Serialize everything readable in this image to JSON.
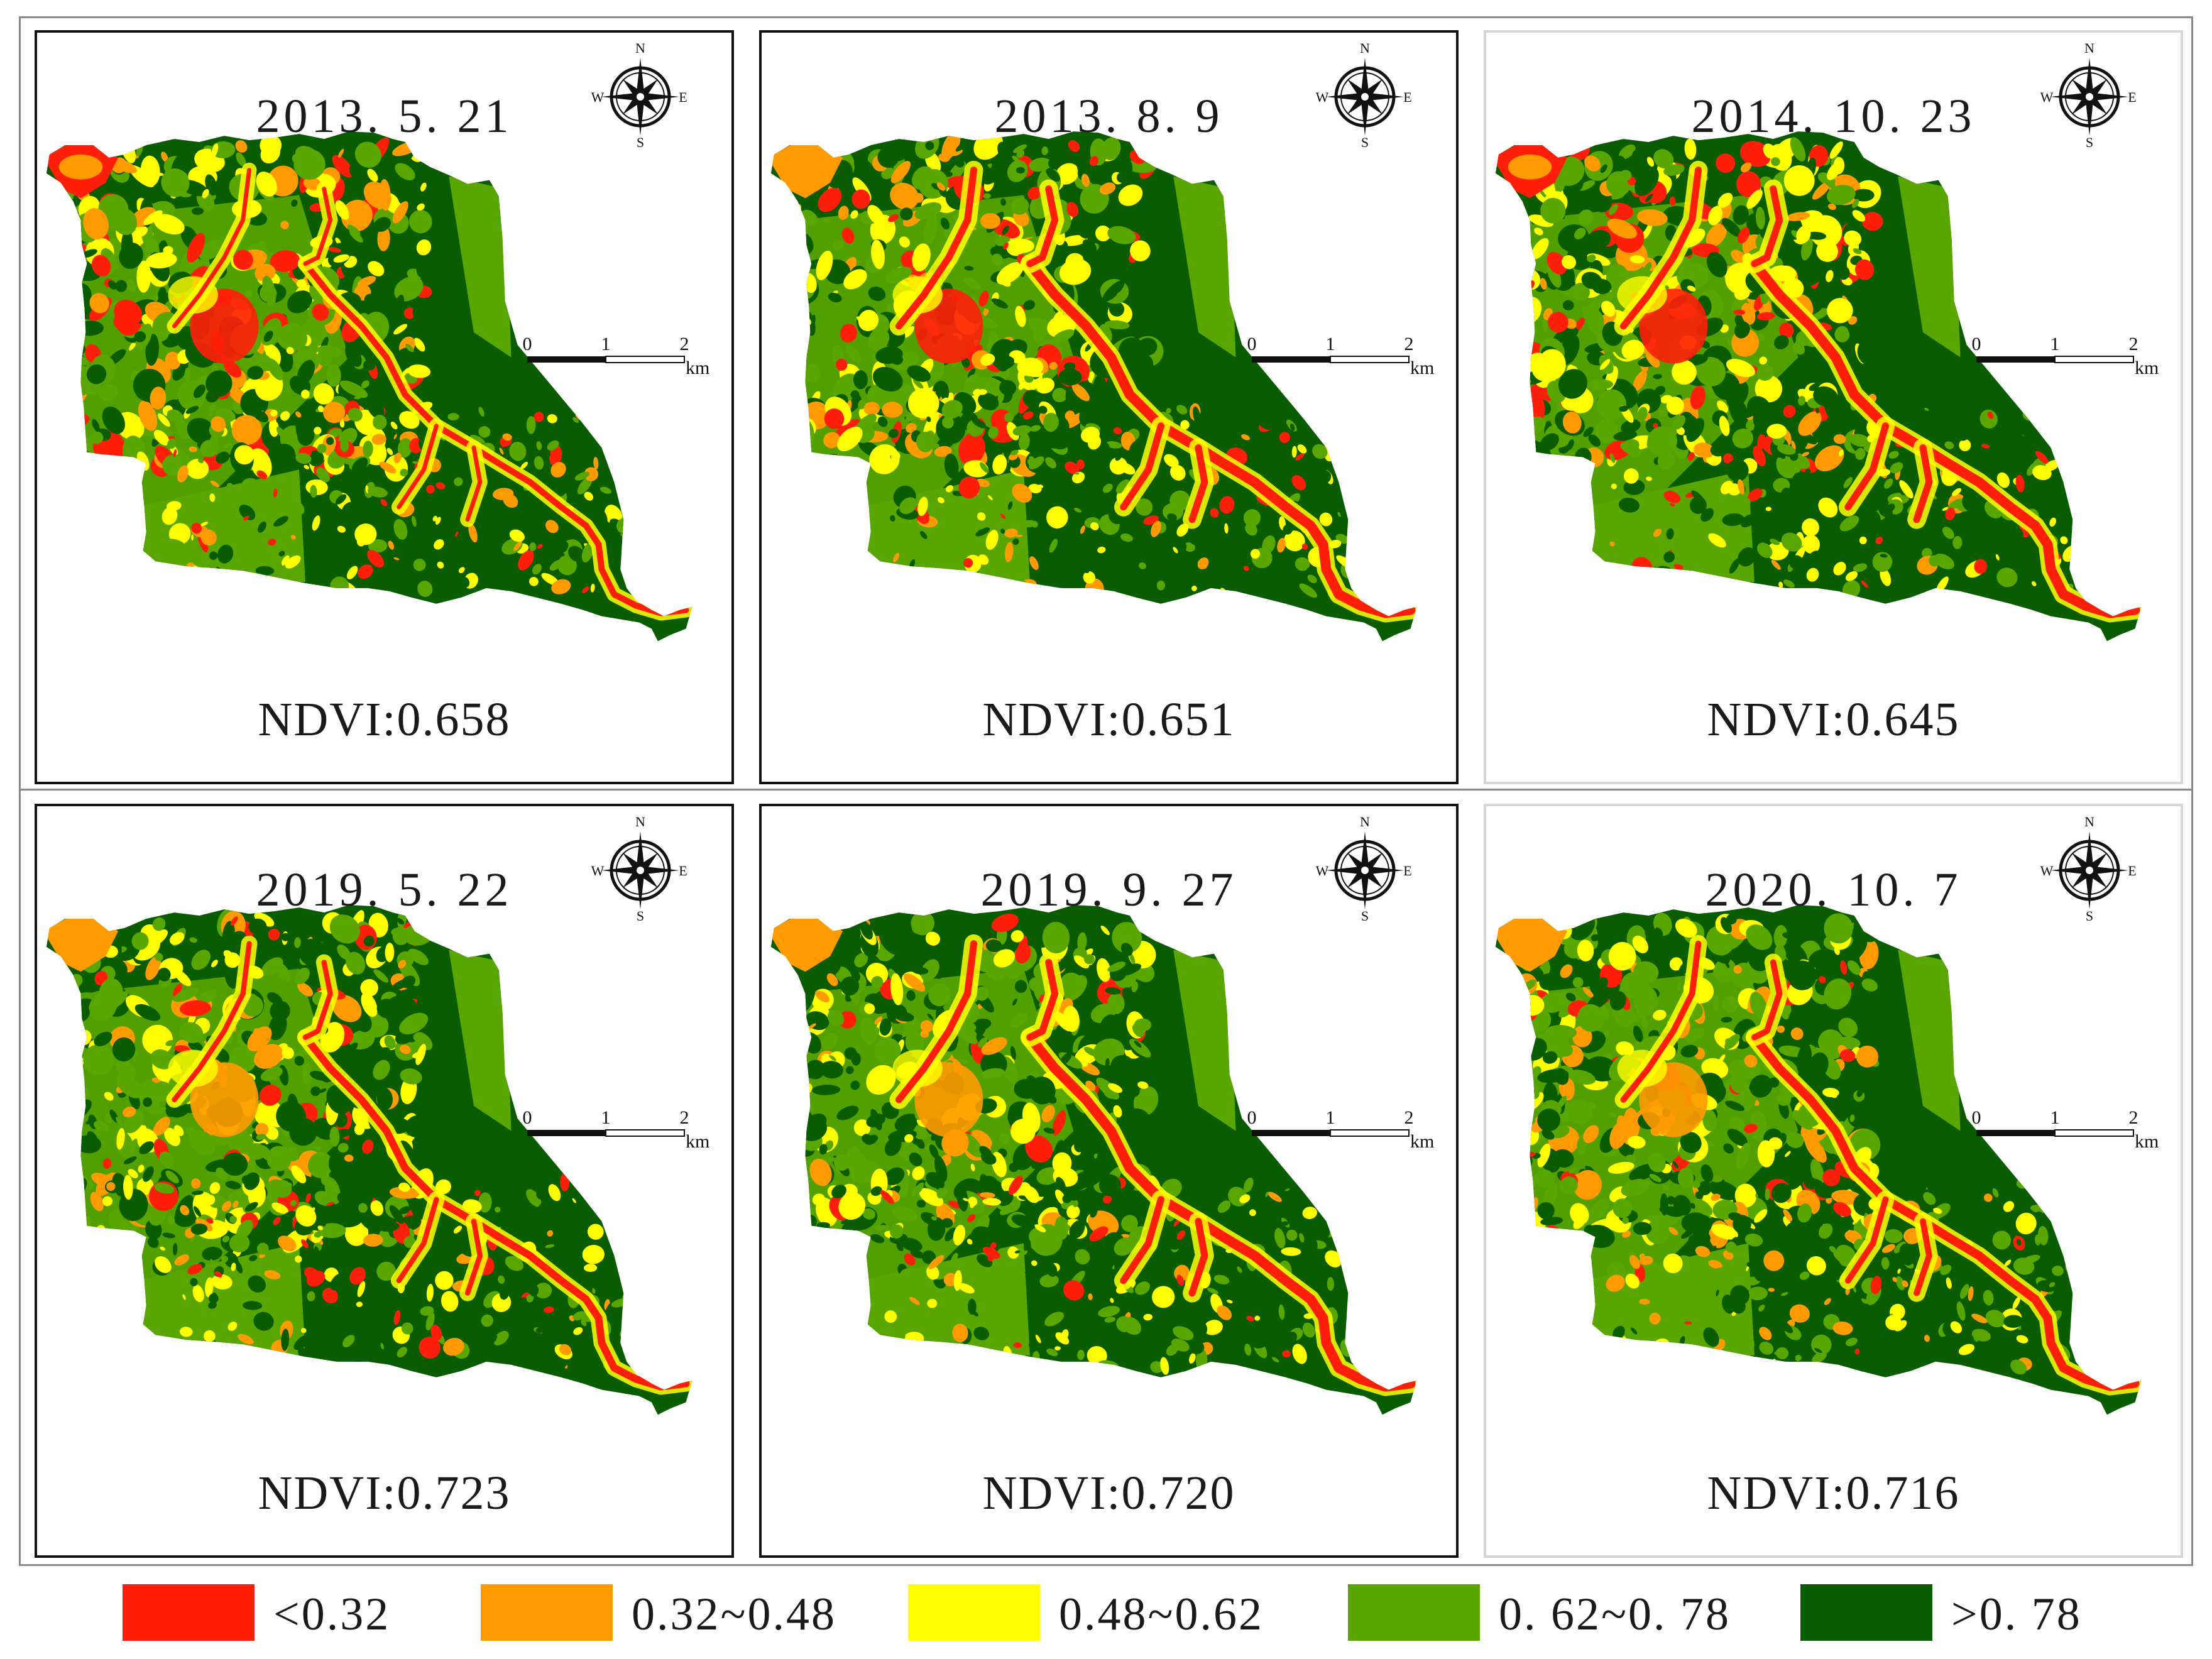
{
  "colors": {
    "c1": "#ff1e0a",
    "c2": "#ff9a00",
    "c3": "#ffff00",
    "c4": "#5aa600",
    "c5": "#0a5c00"
  },
  "panels": [
    {
      "date": "2013. 5. 21",
      "ndvi": "NDVI:0.658",
      "light_border": false
    },
    {
      "date": "2013. 8. 9",
      "ndvi": "NDVI:0.651",
      "light_border": false
    },
    {
      "date": "2014. 10. 23",
      "ndvi": "NDVI:0.645",
      "light_border": true
    },
    {
      "date": "2019. 5. 22",
      "ndvi": "NDVI:0.723",
      "light_border": false
    },
    {
      "date": "2019. 9. 27",
      "ndvi": "NDVI:0.720",
      "light_border": false
    },
    {
      "date": "2020. 10. 7",
      "ndvi": "NDVI:0.716",
      "light_border": true
    }
  ],
  "compass": {
    "n": "N",
    "s": "S",
    "e": "E",
    "w": "W"
  },
  "scale": {
    "t0": "0",
    "t1": "1",
    "t2": "2",
    "unit": "km"
  },
  "legend": [
    {
      "label": "<0.32",
      "color": "#ff1e0a"
    },
    {
      "label": "0.32~0.48",
      "color": "#ff9a00"
    },
    {
      "label": "0.48~0.62",
      "color": "#ffff00"
    },
    {
      "label": "0. 62~0. 78",
      "color": "#5aa600"
    },
    {
      "label": ">0. 78",
      "color": "#0a5c00"
    }
  ]
}
